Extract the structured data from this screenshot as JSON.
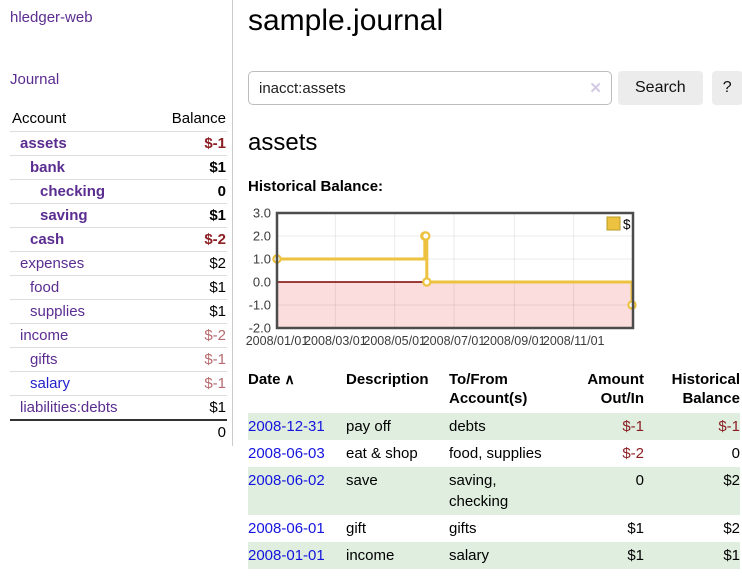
{
  "app": {
    "title": "hledger-web"
  },
  "nav": {
    "journal": "Journal"
  },
  "sidebar": {
    "headers": {
      "account": "Account",
      "balance": "Balance"
    },
    "rows": [
      {
        "account": "assets",
        "balance": "$-1"
      },
      {
        "account": "bank",
        "balance": "$1"
      },
      {
        "account": "checking",
        "balance": "0"
      },
      {
        "account": "saving",
        "balance": "$1"
      },
      {
        "account": "cash",
        "balance": "$-2"
      },
      {
        "account": "expenses",
        "balance": "$2"
      },
      {
        "account": "food",
        "balance": "$1"
      },
      {
        "account": "supplies",
        "balance": "$1"
      },
      {
        "account": "income",
        "balance": "$-2"
      },
      {
        "account": "gifts",
        "balance": "$-1"
      },
      {
        "account": "salary",
        "balance": "$-1"
      },
      {
        "account": "liabilities:debts",
        "balance": "$1"
      }
    ],
    "total": "0"
  },
  "main": {
    "title": "sample.journal",
    "search": {
      "value": "inacct:assets",
      "clear_icon": "✕",
      "button_label": "Search",
      "help_label": "?"
    },
    "account_heading": "assets",
    "chart_heading": "Historical Balance:"
  },
  "chart_data": {
    "type": "line",
    "step": true,
    "series": [
      {
        "name": "$",
        "color": "#edc240",
        "points": [
          [
            "2008-01-01",
            1
          ],
          [
            "2008-06-01",
            2
          ],
          [
            "2008-06-02",
            2
          ],
          [
            "2008-06-03",
            0
          ],
          [
            "2008-12-31",
            -1
          ]
        ]
      }
    ],
    "x_range": [
      "2008-01-01",
      "2009-01-01"
    ],
    "x_ticks": [
      {
        "date": "2008-01-01",
        "label": "2008/01/01"
      },
      {
        "date": "2008-03-01",
        "label": "2008/03/01"
      },
      {
        "date": "2008-05-01",
        "label": "2008/05/01"
      },
      {
        "date": "2008-07-01",
        "label": "2008/07/01"
      },
      {
        "date": "2008-09-01",
        "label": "2008/09/01"
      },
      {
        "date": "2008-11-01",
        "label": "2008/11/01"
      }
    ],
    "y_ticks": [
      "3.0",
      "2.0",
      "1.0",
      "0.0",
      "-1.0",
      "-2.0"
    ],
    "ylim": [
      -2,
      3
    ],
    "legend": {
      "label": "$",
      "position": "top-right"
    },
    "grid": true,
    "negative_region": true
  },
  "transactions": {
    "headers": {
      "date": "Date",
      "sort_icon": "∧",
      "description": "Description",
      "accounts": "To/From Account(s)",
      "amount": "Amount Out/In",
      "balance": "Historical Balance"
    },
    "rows": [
      {
        "date": "2008-12-31",
        "description": "pay off",
        "accounts": "debts",
        "amount": "$-1",
        "balance": "$-1"
      },
      {
        "date": "2008-06-03",
        "description": "eat & shop",
        "accounts": "food, supplies",
        "amount": "$-2",
        "balance": "0"
      },
      {
        "date": "2008-06-02",
        "description": "save",
        "accounts": "saving, checking",
        "amount": "0",
        "balance": "$2"
      },
      {
        "date": "2008-06-01",
        "description": "gift",
        "accounts": "gifts",
        "amount": "$1",
        "balance": "$2"
      },
      {
        "date": "2008-01-01",
        "description": "income",
        "accounts": "salary",
        "amount": "$1",
        "balance": "$1"
      }
    ]
  },
  "colors": {
    "link_purple": "#5b2d90",
    "link_blue": "#1414dd",
    "negative_red": "#8b1f23",
    "negative_soft": "#b76b70",
    "row_green": "#dfeedf",
    "series_gold": "#edc240",
    "negative_region_pink": "#fcdddd",
    "zero_line_red": "#7d0000",
    "chart_border": "#4c4c4c"
  }
}
